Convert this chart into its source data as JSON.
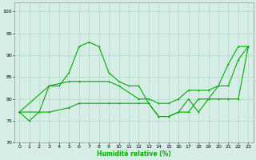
{
  "xlabel": "Humidité relative (%)",
  "xlim": [
    -0.5,
    23.5
  ],
  "ylim": [
    70,
    102
  ],
  "yticks": [
    70,
    75,
    80,
    85,
    90,
    95,
    100
  ],
  "xticks": [
    0,
    1,
    2,
    3,
    4,
    5,
    6,
    7,
    8,
    9,
    10,
    11,
    12,
    13,
    14,
    15,
    16,
    17,
    18,
    19,
    20,
    21,
    22,
    23
  ],
  "background_color": "#d6ede6",
  "grid_color": "#b0d8cc",
  "line_color": "#00aa00",
  "line1_x": [
    0,
    1,
    2,
    3,
    4,
    5,
    6,
    7,
    8,
    9,
    10,
    11,
    12,
    13,
    14,
    15,
    16,
    17,
    18,
    19,
    20,
    21,
    22,
    23
  ],
  "line1_y": [
    77,
    75,
    77,
    83,
    83,
    86,
    92,
    93,
    92,
    86,
    84,
    83,
    83,
    79,
    76,
    76,
    77,
    77,
    80,
    80,
    83,
    83,
    89,
    92
  ],
  "line2_x": [
    0,
    3,
    5,
    6,
    9,
    10,
    12,
    13,
    14,
    15,
    16,
    17,
    18,
    19,
    20,
    21,
    22,
    23
  ],
  "line2_y": [
    77,
    83,
    84,
    84,
    84,
    83,
    80,
    80,
    79,
    79,
    80,
    82,
    82,
    82,
    83,
    88,
    92,
    92
  ],
  "line3_x": [
    0,
    3,
    5,
    6,
    9,
    10,
    12,
    13,
    14,
    15,
    16,
    17,
    18,
    19,
    20,
    21,
    22,
    23
  ],
  "line3_y": [
    77,
    77,
    78,
    79,
    79,
    79,
    79,
    79,
    76,
    76,
    77,
    80,
    77,
    80,
    80,
    80,
    80,
    92
  ]
}
